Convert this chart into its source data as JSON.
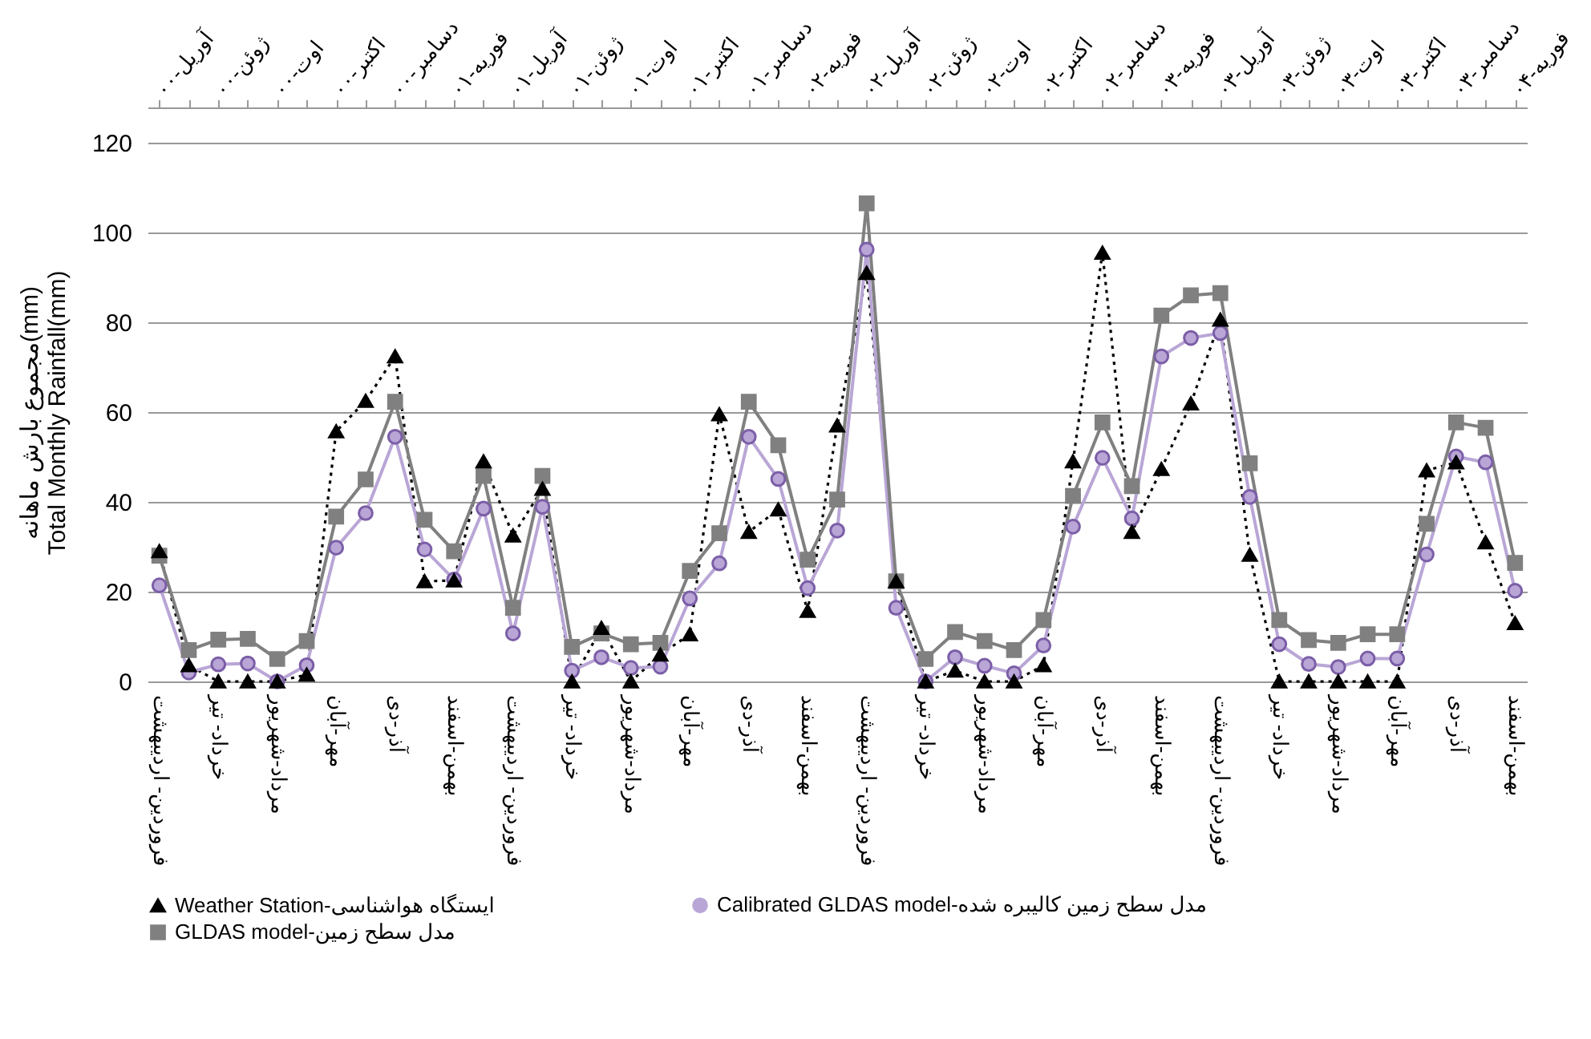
{
  "chart_data": {
    "type": "line",
    "ylabel": "مجموع بارش ماهانه(mm)\nTotal Monthly Rainfall(mm)",
    "categories": [
      "فروردین- اردیبهشت",
      null,
      "خرداد- تیر",
      null,
      "مرداد-شهریور",
      null,
      "مهر-آبان",
      null,
      "آذر-دی",
      null,
      "بهمن-اسفند",
      null,
      "فروردین- اردیبهشت",
      null,
      "خرداد- تیر",
      null,
      "مرداد-شهریور",
      null,
      "مهر-آبان",
      null,
      "آذر-دی",
      null,
      "بهمن-اسفند",
      null,
      "فروردین- اردیبهشت",
      null,
      "خرداد- تیر",
      null,
      "مرداد-شهریور",
      null,
      "مهر-آبان",
      null,
      "آذر-دی",
      null,
      "بهمن-اسفند",
      null,
      "فروردین- اردیبهشت",
      null,
      "خرداد- تیر",
      null,
      "مرداد-شهریور",
      null,
      "مهر-آبان",
      null,
      "آذر-دی",
      null,
      "بهمن-اسفند"
    ],
    "annotations": [
      "آوریل-۰۰",
      "ژوئن-۰۰",
      "اوت-۰۰",
      "اکتبر-۰۰",
      "دسامبر-۰۰",
      "فوریه-۰۱",
      "آوریل-۰۱",
      "ژوئن-۰۱",
      "اوت-۰۱",
      "اکتبر-۰۱",
      "دسامبر-۰۱",
      "فوریه-۰۲",
      "آوریل-۰۲",
      "ژوئن-۰۲",
      "اوت-۰۲",
      "اکتبر-۰۲",
      "دسامبر-۰۲",
      "فوریه-۰۳",
      "آوریل-۰۳",
      "ژوئن-۰۳",
      "اوت-۰۳",
      "اکتبر-۰۳",
      "دسامبر-۰۳",
      "فوریه-۰۴"
    ],
    "series": [
      {
        "name": "Weather Station-ایستگاه هواشناسی",
        "color": "#000000",
        "marker": "triangle",
        "line_style": "dotted",
        "values": [
          29,
          3.6,
          0,
          0,
          0,
          1.5,
          55.7,
          62.5,
          72.4,
          22.3,
          22.5,
          49,
          32.5,
          42.9,
          0,
          11.9,
          0,
          6,
          10.5,
          59.5,
          33.3,
          38.3,
          15.7,
          57,
          91,
          22.3,
          0,
          2.4,
          0,
          0,
          3.6,
          49,
          95.5,
          33.3,
          47.3,
          61.9,
          80.6,
          28.2,
          0,
          0,
          0,
          0,
          0,
          47,
          48.8,
          31,
          13
        ]
      },
      {
        "name": "Calibrated GLDAS model-مدل سطح زمین کالیبره شده",
        "color": "#b9a6d6",
        "marker": "circle",
        "line_style": "solid",
        "values": [
          21.4,
          2,
          3.8,
          4,
          0,
          3.6,
          29.8,
          37.5,
          54.5,
          29.4,
          22.7,
          38.5,
          10.7,
          38.9,
          2.4,
          5.4,
          3,
          3.3,
          18.5,
          26.3,
          54.5,
          45.1,
          20.8,
          33.6,
          96.2,
          16.4,
          0,
          5.4,
          3.5,
          1.8,
          8,
          34.5,
          49.8,
          36.3,
          72.4,
          76.5,
          77.6,
          41.1,
          8.3,
          3.9,
          3.2,
          5.1,
          5.1,
          28.3,
          50.1,
          48.8,
          20.2
        ]
      },
      {
        "name": "GLDAS model-مدل سطح زمین",
        "color": "#808080",
        "marker": "square",
        "line_style": "solid",
        "values": [
          28,
          7,
          9.3,
          9.5,
          5,
          9,
          36.7,
          45,
          62.3,
          36,
          29,
          45.8,
          16.4,
          45.8,
          7.7,
          10.7,
          8.3,
          8.6,
          24.6,
          33,
          62.3,
          52.6,
          27.1,
          40.5,
          106.5,
          22.3,
          5,
          11,
          9,
          7,
          13.7,
          41.3,
          57.7,
          43.5,
          81.5,
          86,
          86.5,
          48.6,
          13.7,
          9.2,
          8.6,
          10.5,
          10.5,
          35.1,
          57.7,
          56.5,
          26.4
        ]
      }
    ],
    "ylim": [
      0,
      120
    ],
    "yticks": [
      0,
      20,
      40,
      60,
      80,
      100,
      120
    ],
    "grid": "y",
    "legend": "bottom"
  }
}
